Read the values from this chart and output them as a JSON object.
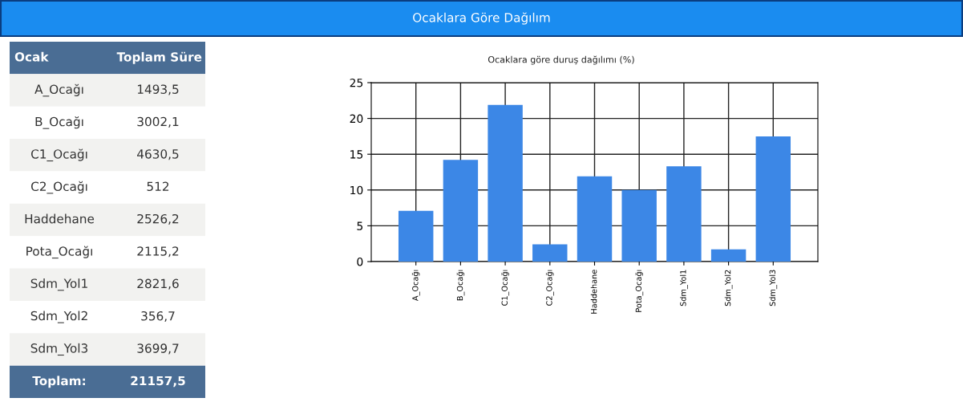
{
  "chart_data": [
    {
      "type": "other",
      "annotations": [
        "Ocak",
        "Toplam Süre",
        "Toplam:"
      ],
      "categories": [
        "A_Ocağı",
        "B_Ocağı",
        "C1_Ocağı",
        "C2_Ocağı",
        "Haddehane",
        "Pota_Ocağı",
        "Sdm_Yol1",
        "Sdm_Yol2",
        "Sdm_Yol3"
      ],
      "value_labels": [
        "1493,5",
        "3002,1",
        "4630,5",
        "512",
        "2526,2",
        "2115,2",
        "2821,6",
        "356,7",
        "3699,7"
      ],
      "totals": [
        "21157,5"
      ]
    },
    {
      "type": "bar",
      "title": "Ocaklara Göre Dağılım",
      "subtitle": "Ocaklara göre duruş dağılımı (%)",
      "categories": [
        "A_Ocağı",
        "B_Ocağı",
        "C1_Ocağı",
        "C2_Ocağı",
        "Haddehane",
        "Pota_Ocağı",
        "Sdm_Yol1",
        "Sdm_Yol2",
        "Sdm_Yol3"
      ],
      "values": [
        7.1,
        14.2,
        21.9,
        2.4,
        11.9,
        10.0,
        13.3,
        1.7,
        17.5
      ],
      "color": "#3c87e6",
      "ylim": [
        0,
        25
      ],
      "yticks": [
        0,
        5,
        10,
        15,
        20,
        25
      ],
      "grid": true
    }
  ]
}
